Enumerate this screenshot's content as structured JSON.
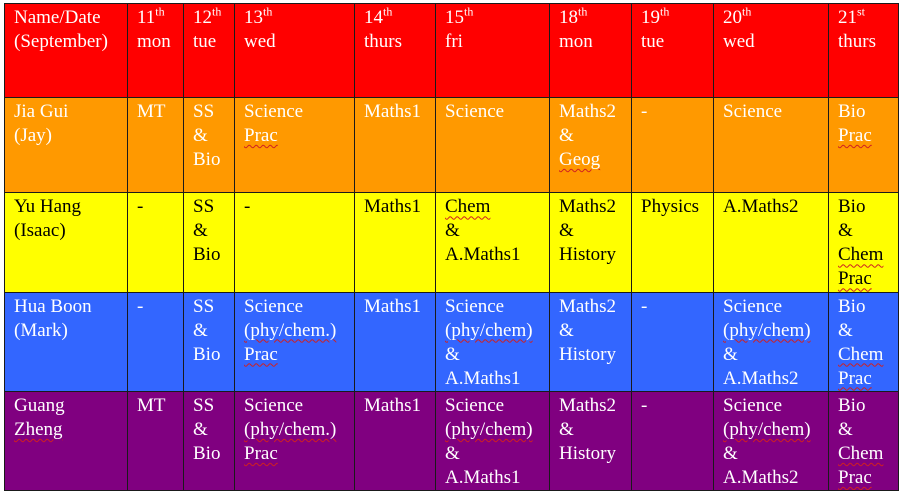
{
  "colors": {
    "header": "#ff0000",
    "row_jay": "#ff9900",
    "row_isaac": "#ffff00",
    "row_mark": "#3366ff",
    "row_guang": "#800080"
  },
  "header": {
    "name_col": [
      "Name/Date",
      "(September)"
    ],
    "days": [
      {
        "num": "11",
        "suffix": "th",
        "dow": "mon"
      },
      {
        "num": "12",
        "suffix": "th",
        "dow": "tue"
      },
      {
        "num": "13",
        "suffix": "th",
        "dow": "wed"
      },
      {
        "num": "14",
        "suffix": "th",
        "dow": "thurs"
      },
      {
        "num": "15",
        "suffix": "th",
        "dow": "fri"
      },
      {
        "num": "18",
        "suffix": "th",
        "dow": "mon"
      },
      {
        "num": "19",
        "suffix": "th",
        "dow": "tue"
      },
      {
        "num": "20",
        "suffix": "th",
        "dow": "wed"
      },
      {
        "num": "21",
        "suffix": "st",
        "dow": "thurs"
      }
    ]
  },
  "rows": [
    {
      "name": [
        "Jia Gui",
        "(Jay)"
      ],
      "cells": [
        [
          "MT"
        ],
        [
          "SS",
          "&",
          "Bio"
        ],
        [
          "Science",
          "Prac"
        ],
        [
          "Maths1"
        ],
        [
          "Science"
        ],
        [
          "Maths2",
          "&",
          "Geog"
        ],
        [
          "-"
        ],
        [
          "Science"
        ],
        [
          "Bio",
          "Prac"
        ]
      ]
    },
    {
      "name": [
        "Yu Hang",
        "(Isaac)"
      ],
      "cells": [
        [
          "-"
        ],
        [
          "SS",
          "&",
          "Bio"
        ],
        [
          "-"
        ],
        [
          "Maths1"
        ],
        [
          "Chem",
          "&",
          "A.Maths1"
        ],
        [
          "Maths2",
          "&",
          "History"
        ],
        [
          "Physics"
        ],
        [
          "A.Maths2"
        ],
        [
          "Bio",
          "&",
          "Chem",
          "Prac"
        ]
      ]
    },
    {
      "name": [
        "Hua Boon",
        "(Mark)"
      ],
      "cells": [
        [
          "-"
        ],
        [
          "SS",
          "&",
          "Bio"
        ],
        [
          "Science",
          "(phy/chem.)",
          "Prac"
        ],
        [
          "Maths1"
        ],
        [
          "Science",
          "(phy/chem)",
          "&",
          "A.Maths1"
        ],
        [
          "Maths2",
          "&",
          "History"
        ],
        [
          "-"
        ],
        [
          "Science",
          "(phy/chem)",
          "&",
          "A.Maths2"
        ],
        [
          "Bio",
          "&",
          "Chem",
          "Prac"
        ]
      ]
    },
    {
      "name": [
        "Guang",
        "Zheng"
      ],
      "cells": [
        [
          "MT"
        ],
        [
          "SS",
          "&",
          "Bio"
        ],
        [
          "Science",
          "(phy/chem.)",
          "Prac"
        ],
        [
          "Maths1"
        ],
        [
          "Science",
          "(phy/chem)",
          "&",
          "A.Maths1"
        ],
        [
          "Maths2",
          "&",
          "History"
        ],
        [
          "-"
        ],
        [
          "Science",
          "(phy/chem)",
          "&",
          "A.Maths2"
        ],
        [
          "Bio",
          "&",
          "Chem",
          "Prac"
        ]
      ]
    }
  ]
}
